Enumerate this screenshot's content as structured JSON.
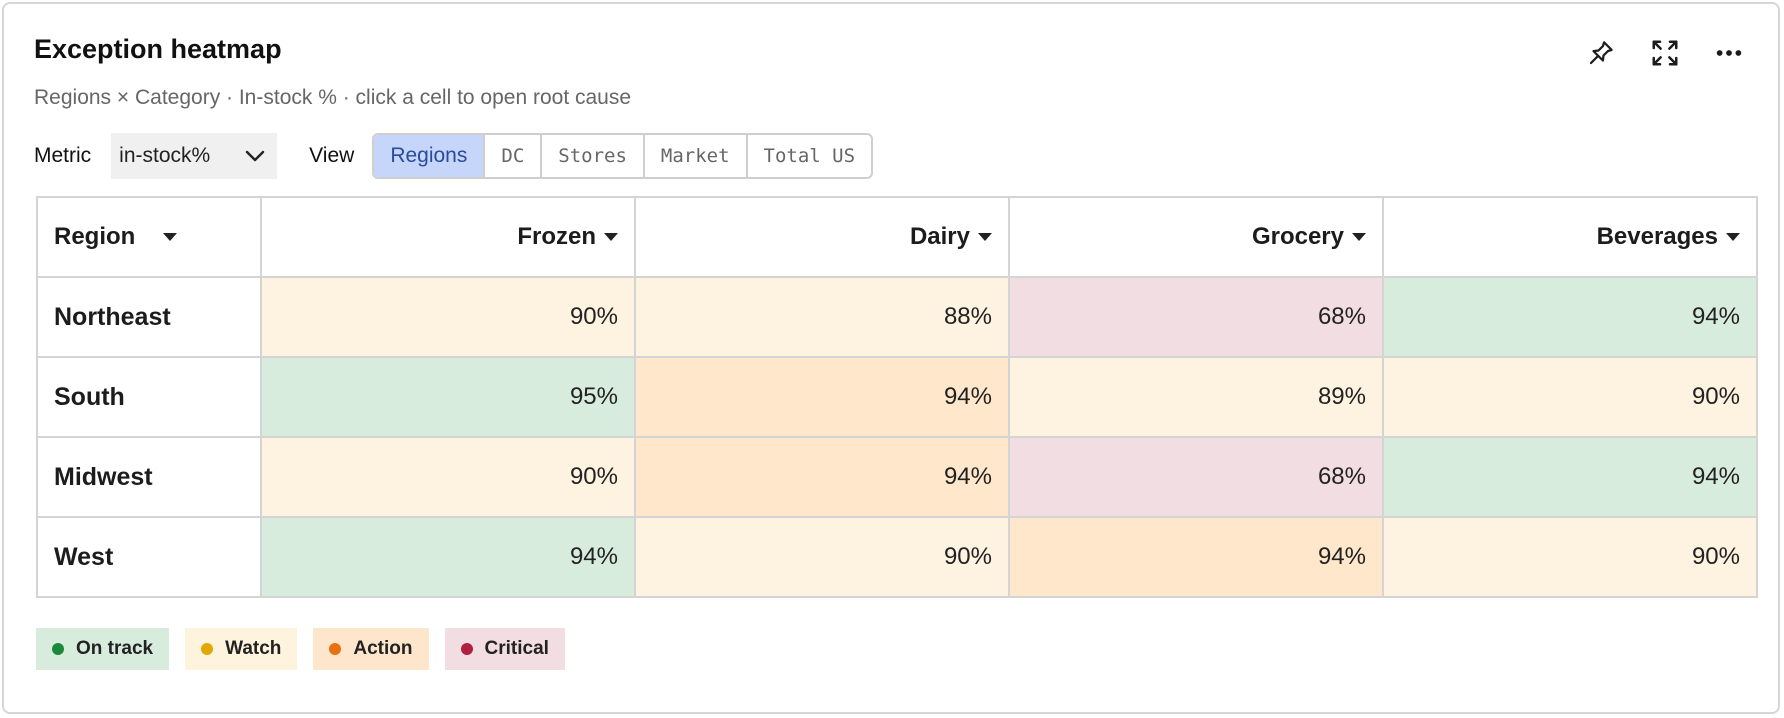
{
  "header": {
    "title": "Exception heatmap",
    "subtitle": "Regions × Category · In-stock % · click a cell to open root cause",
    "icons": [
      "pin-icon",
      "expand-icon",
      "more-icon"
    ]
  },
  "controls": {
    "metric_label": "Metric",
    "metric_value": "in-stock%",
    "view_label": "View",
    "views": [
      "Regions",
      "DC",
      "Stores",
      "Market",
      "Total US"
    ],
    "active_view": "Regions"
  },
  "table": {
    "row_header": "Region",
    "columns": [
      "Frozen",
      "Dairy",
      "Grocery",
      "Beverages"
    ],
    "rows": [
      {
        "region": "Northeast",
        "cells": [
          {
            "value": "90%",
            "status": "watch"
          },
          {
            "value": "88%",
            "status": "watch"
          },
          {
            "value": "68%",
            "status": "critical"
          },
          {
            "value": "94%",
            "status": "on_track"
          }
        ]
      },
      {
        "region": "South",
        "cells": [
          {
            "value": "95%",
            "status": "on_track"
          },
          {
            "value": "94%",
            "status": "action"
          },
          {
            "value": "89%",
            "status": "watch"
          },
          {
            "value": "90%",
            "status": "watch"
          }
        ]
      },
      {
        "region": "Midwest",
        "cells": [
          {
            "value": "90%",
            "status": "watch"
          },
          {
            "value": "94%",
            "status": "action"
          },
          {
            "value": "68%",
            "status": "critical"
          },
          {
            "value": "94%",
            "status": "on_track"
          }
        ]
      },
      {
        "region": "West",
        "cells": [
          {
            "value": "94%",
            "status": "on_track"
          },
          {
            "value": "90%",
            "status": "watch"
          },
          {
            "value": "94%",
            "status": "action"
          },
          {
            "value": "90%",
            "status": "watch"
          }
        ]
      }
    ]
  },
  "legend": [
    {
      "key": "on_track",
      "label": "On track",
      "bg": "#d8ecdd",
      "dot": "#1a8a3a"
    },
    {
      "key": "watch",
      "label": "Watch",
      "bg": "#fef3dc",
      "dot": "#e0a800"
    },
    {
      "key": "action",
      "label": "Action",
      "bg": "#fee6cc",
      "dot": "#e8700f"
    },
    {
      "key": "critical",
      "label": "Critical",
      "bg": "#f2dde3",
      "dot": "#b02040"
    }
  ],
  "cell_colors": {
    "on_track": "#d8ecdd",
    "watch": "#fef3e1",
    "action": "#fee7cb",
    "critical": "#f2dde3"
  }
}
